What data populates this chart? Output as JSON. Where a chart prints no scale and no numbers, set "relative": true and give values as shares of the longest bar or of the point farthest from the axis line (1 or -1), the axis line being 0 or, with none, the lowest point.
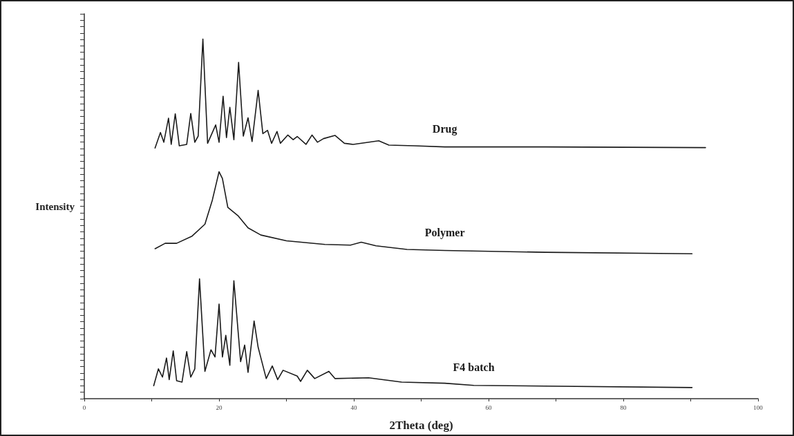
{
  "chart_data": {
    "type": "line",
    "relative": true,
    "xlabel": "2Theta (deg)",
    "ylabel": "Intensity",
    "xlim": [
      0,
      100
    ],
    "xticks": [
      0,
      {
        "value": 10,
        "label": null
      },
      20,
      {
        "value": 30,
        "label": null
      },
      40,
      {
        "value": 50,
        "label": null
      },
      60,
      {
        "value": 70,
        "label": null
      },
      80,
      {
        "value": 90,
        "label": null
      },
      100
    ],
    "grid": false,
    "legend": false,
    "marker": "none",
    "line_style": "solid",
    "series": [
      {
        "name": "Drug",
        "color": "#1a1a1a",
        "x": [
          10.5,
          11.3,
          11.8,
          12.5,
          12.9,
          13.5,
          14.1,
          15.2,
          15.8,
          16.4,
          16.9,
          17.6,
          18.3,
          19.5,
          20.0,
          20.6,
          21.1,
          21.6,
          22.2,
          22.9,
          23.6,
          24.3,
          24.9,
          25.8,
          26.5,
          27.2,
          27.8,
          28.6,
          29.1,
          30.2,
          31.0,
          31.6,
          32.9,
          33.8,
          34.6,
          35.5,
          37.2,
          38.6,
          39.9,
          43.7,
          45.2,
          49.0,
          53.5,
          68.4,
          92.2
        ],
        "values": [
          0.697,
          0.74,
          0.713,
          0.78,
          0.707,
          0.792,
          0.703,
          0.707,
          0.793,
          0.713,
          0.73,
          1.0,
          0.71,
          0.761,
          0.713,
          0.841,
          0.726,
          0.81,
          0.72,
          0.935,
          0.73,
          0.781,
          0.715,
          0.857,
          0.737,
          0.746,
          0.71,
          0.743,
          0.71,
          0.733,
          0.72,
          0.729,
          0.707,
          0.733,
          0.713,
          0.723,
          0.732,
          0.71,
          0.707,
          0.717,
          0.705,
          0.703,
          0.7,
          0.7,
          0.698
        ]
      },
      {
        "name": "Polymer",
        "color": "#1a1a1a",
        "x": [
          10.5,
          12.0,
          13.7,
          16.0,
          17.9,
          19.0,
          20.0,
          20.5,
          21.3,
          22.8,
          24.3,
          26.2,
          30.0,
          35.7,
          39.5,
          41.1,
          43.3,
          47.9,
          53.5,
          68.4,
          90.2
        ],
        "values": [
          0.417,
          0.432,
          0.432,
          0.452,
          0.485,
          0.552,
          0.631,
          0.612,
          0.532,
          0.509,
          0.475,
          0.455,
          0.439,
          0.429,
          0.427,
          0.435,
          0.425,
          0.415,
          0.412,
          0.407,
          0.403
        ]
      },
      {
        "name": "F4 batch",
        "color": "#1a1a1a",
        "x": [
          10.3,
          11.0,
          11.6,
          12.2,
          12.6,
          13.2,
          13.7,
          14.5,
          15.2,
          15.8,
          16.4,
          17.1,
          17.9,
          18.8,
          19.4,
          20.0,
          20.5,
          21.0,
          21.6,
          22.2,
          23.2,
          23.8,
          24.3,
          25.2,
          25.8,
          27.0,
          27.9,
          28.7,
          29.5,
          31.6,
          32.1,
          33.1,
          34.2,
          36.3,
          37.2,
          42.2,
          47.1,
          53.5,
          57.8,
          90.2
        ],
        "values": [
          0.036,
          0.083,
          0.06,
          0.113,
          0.053,
          0.133,
          0.05,
          0.046,
          0.131,
          0.06,
          0.083,
          0.333,
          0.076,
          0.136,
          0.116,
          0.263,
          0.116,
          0.176,
          0.093,
          0.328,
          0.103,
          0.149,
          0.073,
          0.216,
          0.143,
          0.056,
          0.091,
          0.053,
          0.079,
          0.063,
          0.048,
          0.079,
          0.056,
          0.076,
          0.056,
          0.058,
          0.046,
          0.043,
          0.037,
          0.031
        ]
      }
    ]
  }
}
